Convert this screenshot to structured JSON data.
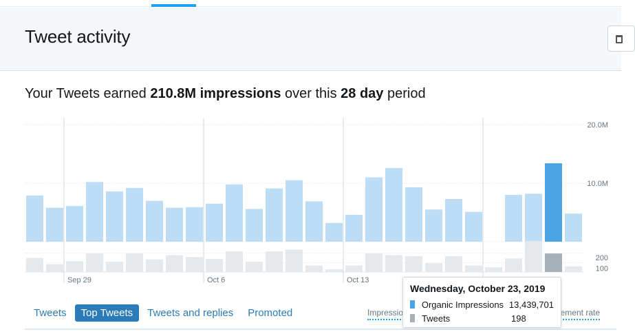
{
  "header": {
    "title": "Tweet activity"
  },
  "summary": {
    "prefix": "Your Tweets earned ",
    "impressions": "210.8M impressions",
    "middle": " over this ",
    "period": "28 day",
    "suffix": " period"
  },
  "chart_data": {
    "type": "bar",
    "series": [
      {
        "name": "Organic Impressions",
        "values": [
          7.9,
          5.8,
          6.1,
          10.2,
          8.6,
          9.2,
          7.0,
          5.8,
          5.9,
          6.5,
          9.8,
          5.6,
          9.1,
          10.5,
          6.9,
          3.2,
          4.6,
          11.0,
          12.6,
          9.3,
          5.5,
          7.3,
          5.1,
          null,
          8.0,
          8.2,
          13.4,
          4.8
        ],
        "color": "#bddcf5",
        "highlight_color": "#4ba3e3"
      },
      {
        "name": "Tweets",
        "values": [
          150,
          85,
          115,
          200,
          110,
          200,
          135,
          180,
          160,
          140,
          220,
          110,
          220,
          240,
          70,
          30,
          70,
          200,
          180,
          170,
          95,
          170,
          70,
          50,
          145,
          330,
          198,
          60
        ],
        "color": "#e6e9ec",
        "highlight_color": "#a8b1b8"
      }
    ],
    "highlight_index": 26,
    "x_labels": [
      {
        "index": 2,
        "label": "Sep 29"
      },
      {
        "index": 9,
        "label": "Oct 6"
      },
      {
        "index": 16,
        "label": "Oct 13"
      }
    ],
    "y_labels_impressions": [
      "20.0M",
      "10.0M"
    ],
    "y_labels_tweets": [
      "200",
      "100"
    ],
    "ylim_impressions": [
      0,
      20
    ],
    "ylim_tweets": [
      0,
      350
    ]
  },
  "tooltip": {
    "date": "Wednesday, October 23, 2019",
    "rows": [
      {
        "label": "Organic Impressions",
        "value": "13,439,701",
        "color": "#4ba3e3"
      },
      {
        "label": "Tweets",
        "value": "198",
        "color": "#a8b1b8"
      }
    ]
  },
  "tabs": [
    {
      "label": "Tweets",
      "active": false
    },
    {
      "label": "Top Tweets",
      "active": true
    },
    {
      "label": "Tweets and replies",
      "active": false
    },
    {
      "label": "Promoted",
      "active": false
    }
  ],
  "metrics": {
    "left_label": "Impressions",
    "right_label": "Engagement rate"
  }
}
